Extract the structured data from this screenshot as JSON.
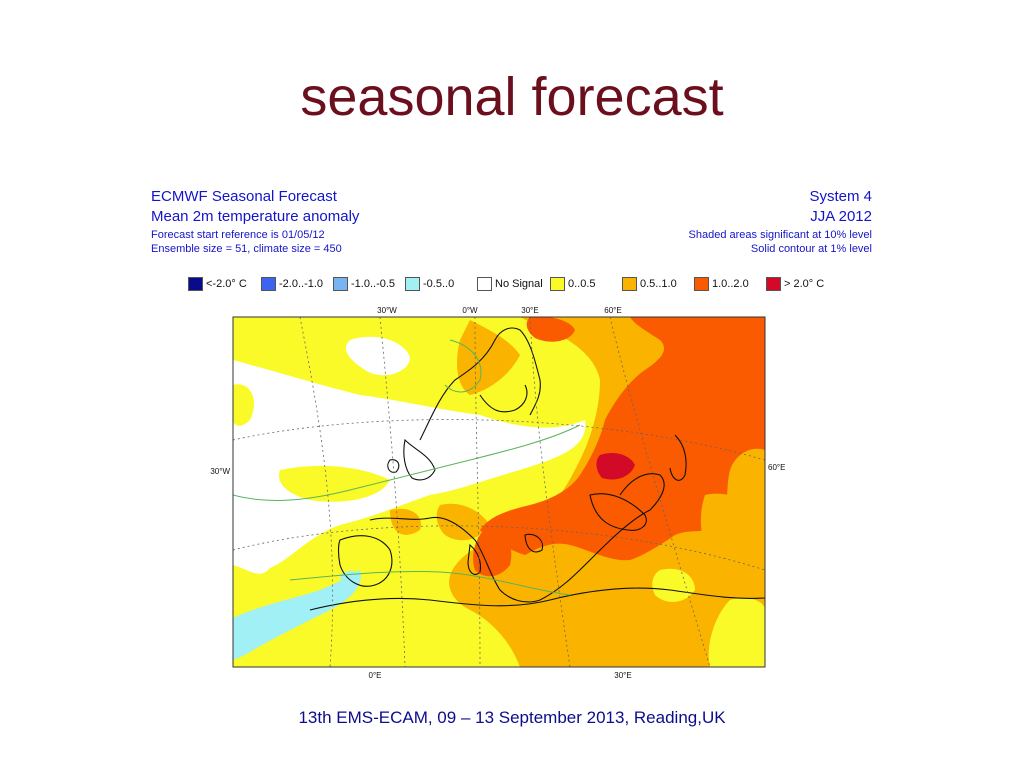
{
  "slide": {
    "title": "seasonal forecast",
    "footer": "13th EMS-ECAM, 09 – 13 September 2013, Reading,UK"
  },
  "map_header": {
    "left": {
      "line1": "ECMWF Seasonal Forecast",
      "line2": "Mean 2m temperature anomaly",
      "line3": "Forecast start reference is 01/05/12",
      "line4": "Ensemble size = 51, climate size = 450"
    },
    "right": {
      "line1": "System 4",
      "line2": "JJA 2012",
      "line3": "Shaded areas significant at 10% level",
      "line4": "Solid contour at 1% level"
    }
  },
  "legend": [
    {
      "label": "<-2.0° C",
      "color": "#0a0a8c"
    },
    {
      "label": "-2.0..-1.0",
      "color": "#3c64f0"
    },
    {
      "label": "-1.0..-0.5",
      "color": "#78b4f0"
    },
    {
      "label": "-0.5..0",
      "color": "#a0f0f5"
    },
    {
      "label": "No Signal",
      "color": "#ffffff"
    },
    {
      "label": "0..0.5",
      "color": "#fafa28"
    },
    {
      "label": "0.5..1.0",
      "color": "#fab400"
    },
    {
      "label": "1.0..2.0",
      "color": "#fa5a00"
    },
    {
      "label": "> 2.0° C",
      "color": "#d20a28"
    }
  ],
  "map_labels": {
    "top": [
      "30°W",
      "0°W",
      "30°E",
      "60°E"
    ],
    "bottom": [
      "0°E",
      "30°E"
    ],
    "left": "30°W",
    "right": "60°E"
  }
}
